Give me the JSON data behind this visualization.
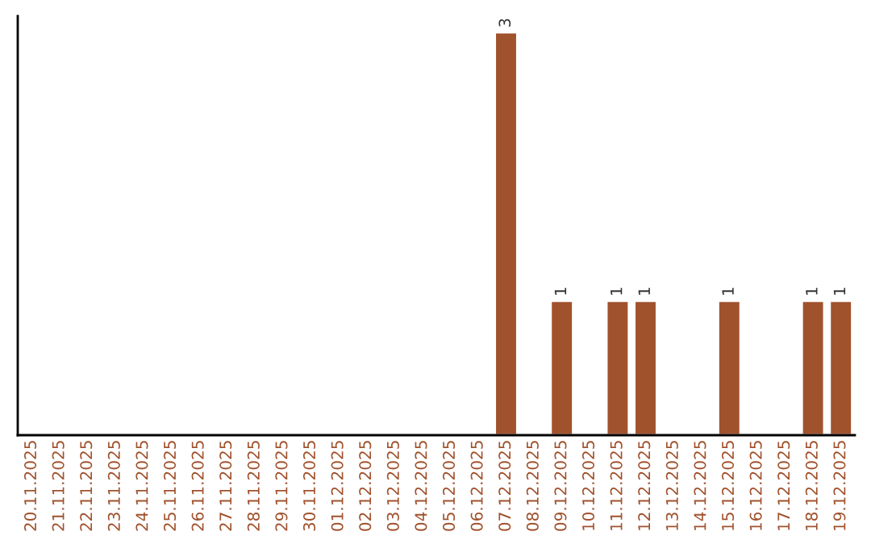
{
  "chart_data": {
    "type": "bar",
    "categories": [
      "20.11.2025",
      "21.11.2025",
      "22.11.2025",
      "23.11.2025",
      "24.11.2025",
      "25.11.2025",
      "26.11.2025",
      "27.11.2025",
      "28.11.2025",
      "29.11.2025",
      "30.11.2025",
      "01.12.2025",
      "02.12.2025",
      "03.12.2025",
      "04.12.2025",
      "05.12.2025",
      "06.12.2025",
      "07.12.2025",
      "08.12.2025",
      "09.12.2025",
      "10.12.2025",
      "11.12.2025",
      "12.12.2025",
      "13.12.2025",
      "14.12.2025",
      "15.12.2025",
      "16.12.2025",
      "17.12.2025",
      "18.12.2025",
      "19.12.2025"
    ],
    "values": [
      null,
      null,
      null,
      null,
      null,
      null,
      null,
      null,
      null,
      null,
      null,
      null,
      null,
      null,
      null,
      null,
      null,
      3,
      null,
      1,
      null,
      1,
      1,
      null,
      null,
      1,
      null,
      null,
      1,
      1
    ],
    "value_labels": [
      null,
      null,
      null,
      null,
      null,
      null,
      null,
      null,
      null,
      null,
      null,
      null,
      null,
      null,
      null,
      null,
      null,
      "3",
      null,
      "1",
      null,
      "1",
      "1",
      null,
      null,
      "1",
      null,
      null,
      "1",
      "1"
    ],
    "color": "#a0522d",
    "tick_labels": "x",
    "grid": false,
    "legend": false
  }
}
